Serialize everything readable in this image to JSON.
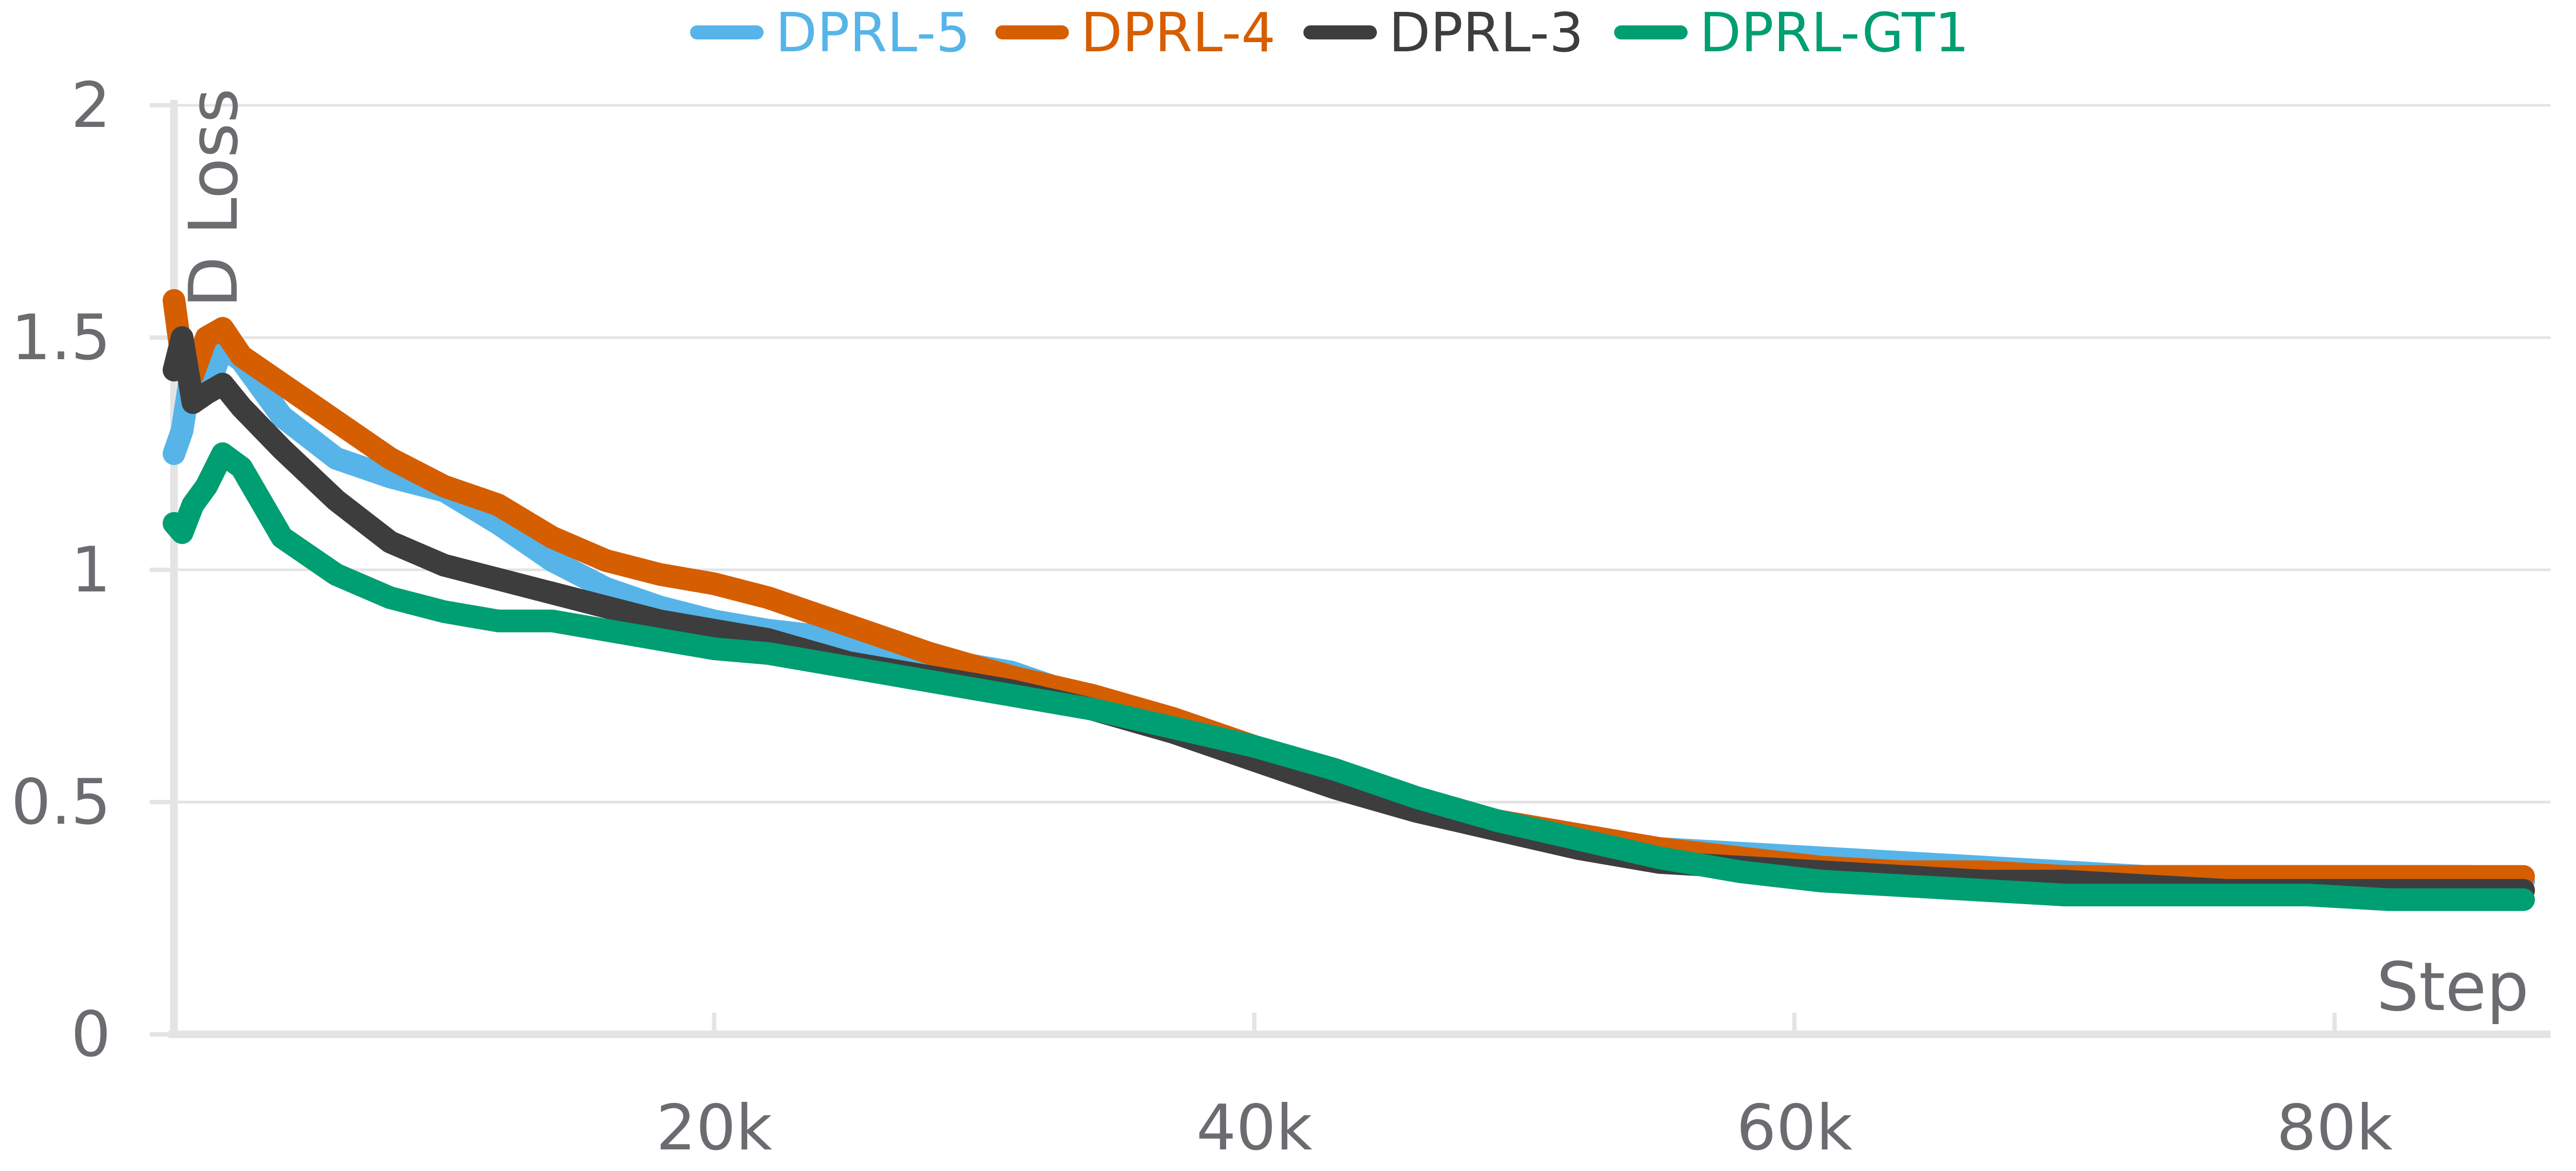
{
  "chart_data": {
    "type": "line",
    "title": "",
    "xlabel": "Step",
    "ylabel": "D Loss",
    "xlim": [
      0,
      88000
    ],
    "ylim": [
      0,
      2
    ],
    "grid": true,
    "legend_position": "top-center",
    "x_ticks": [
      20000,
      40000,
      60000,
      80000
    ],
    "x_tick_labels": [
      "20k",
      "40k",
      "60k",
      "80k"
    ],
    "y_ticks": [
      0,
      0.5,
      1,
      1.5,
      2
    ],
    "y_tick_labels": [
      "0",
      "0.5",
      "1",
      "1.5",
      "2"
    ],
    "series": [
      {
        "name": "DPRL-5",
        "color": "#56b4e9",
        "x": [
          0,
          300,
          700,
          1200,
          1800,
          2500,
          4000,
          6000,
          8000,
          10000,
          12000,
          14000,
          16000,
          18000,
          20000,
          22000,
          25000,
          28000,
          31000,
          34000,
          37000,
          40000,
          43000,
          46000,
          49000,
          52000,
          55000,
          58000,
          61000,
          64000,
          67000,
          70000,
          73000,
          76000,
          79000,
          82000,
          85000,
          87000
        ],
        "y": [
          1.25,
          1.3,
          1.45,
          1.38,
          1.48,
          1.45,
          1.33,
          1.24,
          1.2,
          1.17,
          1.1,
          1.02,
          0.96,
          0.92,
          0.89,
          0.87,
          0.85,
          0.81,
          0.78,
          0.72,
          0.67,
          0.61,
          0.56,
          0.5,
          0.46,
          0.43,
          0.4,
          0.39,
          0.38,
          0.37,
          0.36,
          0.35,
          0.34,
          0.34,
          0.34,
          0.34,
          0.34,
          0.33
        ]
      },
      {
        "name": "DPRL-4",
        "color": "#d55e00",
        "x": [
          0,
          300,
          700,
          1200,
          1800,
          2500,
          4000,
          6000,
          8000,
          10000,
          12000,
          14000,
          16000,
          18000,
          20000,
          22000,
          25000,
          28000,
          31000,
          34000,
          37000,
          40000,
          43000,
          46000,
          49000,
          52000,
          55000,
          58000,
          61000,
          64000,
          67000,
          70000,
          73000,
          76000,
          79000,
          82000,
          85000,
          87000
        ],
        "y": [
          1.58,
          1.45,
          1.42,
          1.5,
          1.52,
          1.46,
          1.4,
          1.32,
          1.24,
          1.18,
          1.14,
          1.07,
          1.02,
          0.99,
          0.97,
          0.94,
          0.88,
          0.82,
          0.77,
          0.73,
          0.68,
          0.62,
          0.56,
          0.5,
          0.46,
          0.43,
          0.4,
          0.38,
          0.36,
          0.35,
          0.35,
          0.34,
          0.34,
          0.34,
          0.34,
          0.34,
          0.34,
          0.34
        ]
      },
      {
        "name": "DPRL-3",
        "color": "#3d3d3d",
        "x": [
          0,
          300,
          700,
          1200,
          1800,
          2500,
          4000,
          6000,
          8000,
          10000,
          12000,
          14000,
          16000,
          18000,
          20000,
          22000,
          25000,
          28000,
          31000,
          34000,
          37000,
          40000,
          43000,
          46000,
          49000,
          52000,
          55000,
          58000,
          61000,
          64000,
          67000,
          70000,
          73000,
          76000,
          79000,
          82000,
          85000,
          87000
        ],
        "y": [
          1.43,
          1.5,
          1.36,
          1.38,
          1.4,
          1.35,
          1.26,
          1.15,
          1.06,
          1.01,
          0.98,
          0.95,
          0.92,
          0.89,
          0.87,
          0.85,
          0.8,
          0.77,
          0.74,
          0.7,
          0.65,
          0.59,
          0.53,
          0.48,
          0.44,
          0.4,
          0.37,
          0.36,
          0.35,
          0.34,
          0.33,
          0.33,
          0.32,
          0.31,
          0.31,
          0.31,
          0.31,
          0.31
        ]
      },
      {
        "name": "DPRL-GT1",
        "color": "#009e73",
        "x": [
          0,
          300,
          700,
          1200,
          1800,
          2500,
          4000,
          6000,
          8000,
          10000,
          12000,
          14000,
          16000,
          18000,
          20000,
          22000,
          25000,
          28000,
          31000,
          34000,
          37000,
          40000,
          43000,
          46000,
          49000,
          52000,
          55000,
          58000,
          61000,
          64000,
          67000,
          70000,
          73000,
          76000,
          79000,
          82000,
          85000,
          87000
        ],
        "y": [
          1.1,
          1.08,
          1.14,
          1.18,
          1.25,
          1.22,
          1.07,
          0.99,
          0.94,
          0.91,
          0.89,
          0.89,
          0.87,
          0.85,
          0.83,
          0.82,
          0.79,
          0.76,
          0.73,
          0.7,
          0.66,
          0.62,
          0.57,
          0.51,
          0.46,
          0.42,
          0.38,
          0.35,
          0.33,
          0.32,
          0.31,
          0.3,
          0.3,
          0.3,
          0.3,
          0.29,
          0.29,
          0.29
        ]
      }
    ]
  }
}
